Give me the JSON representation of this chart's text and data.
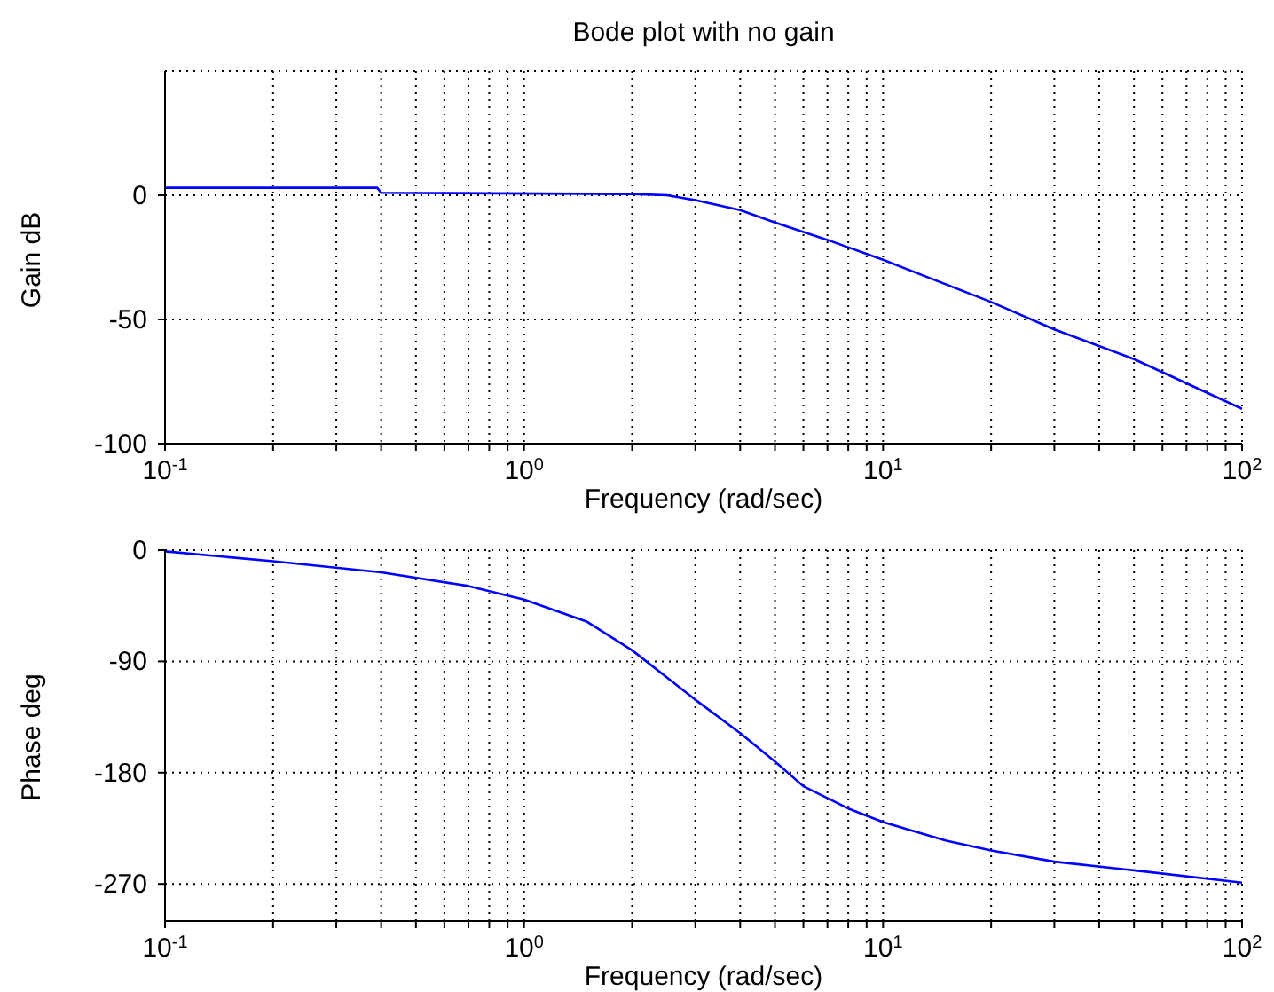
{
  "chart_data": [
    {
      "type": "line",
      "title": "Bode plot with no gain",
      "xlabel": "Frequency (rad/sec)",
      "ylabel": "Gain dB",
      "log": "x",
      "grid": true,
      "marker": "none",
      "line_style": "solid",
      "xlim": [
        0.1,
        100
      ],
      "ylim": [
        -100,
        50
      ],
      "yticks": [
        -100,
        -50,
        0
      ],
      "xticks": [
        {
          "value": 0.1,
          "label": "10$^{-1}$"
        },
        {
          "value": 0.2,
          "label": null
        },
        {
          "value": 0.3,
          "label": null
        },
        {
          "value": 0.4,
          "label": null
        },
        {
          "value": 0.5,
          "label": null
        },
        {
          "value": 0.6,
          "label": null
        },
        {
          "value": 0.7,
          "label": null
        },
        {
          "value": 0.8,
          "label": null
        },
        {
          "value": 0.9,
          "label": null
        },
        {
          "value": 1,
          "label": "10$^{0}$"
        },
        {
          "value": 2,
          "label": null
        },
        {
          "value": 3,
          "label": null
        },
        {
          "value": 4,
          "label": null
        },
        {
          "value": 5,
          "label": null
        },
        {
          "value": 6,
          "label": null
        },
        {
          "value": 7,
          "label": null
        },
        {
          "value": 8,
          "label": null
        },
        {
          "value": 9,
          "label": null
        },
        {
          "value": 10,
          "label": "10$^{1}$"
        },
        {
          "value": 20,
          "label": null
        },
        {
          "value": 30,
          "label": null
        },
        {
          "value": 40,
          "label": null
        },
        {
          "value": 50,
          "label": null
        },
        {
          "value": 60,
          "label": null
        },
        {
          "value": 70,
          "label": null
        },
        {
          "value": 80,
          "label": null
        },
        {
          "value": 90,
          "label": null
        },
        {
          "value": 100,
          "label": "10$^{2}$"
        }
      ],
      "series": [
        {
          "color": "#0000ff",
          "x": [
            0.1,
            0.39,
            0.4,
            2,
            2.5,
            3,
            4,
            5,
            7,
            10,
            20,
            30,
            50,
            100
          ],
          "values": [
            3,
            3,
            1,
            0.5,
            0,
            -2,
            -6,
            -11,
            -18,
            -26,
            -43,
            -54,
            -66,
            -86
          ]
        }
      ]
    },
    {
      "type": "line",
      "xlabel": "Frequency (rad/sec)",
      "ylabel": "Phase deg",
      "log": "x",
      "grid": true,
      "marker": "none",
      "line_style": "solid",
      "xlim": [
        0.1,
        100
      ],
      "ylim": [
        -300,
        0
      ],
      "yticks": [
        -270,
        -180,
        -90,
        0
      ],
      "xticks": [
        {
          "value": 0.1,
          "label": "10$^{-1}$"
        },
        {
          "value": 0.2,
          "label": null
        },
        {
          "value": 0.3,
          "label": null
        },
        {
          "value": 0.4,
          "label": null
        },
        {
          "value": 0.5,
          "label": null
        },
        {
          "value": 0.6,
          "label": null
        },
        {
          "value": 0.7,
          "label": null
        },
        {
          "value": 0.8,
          "label": null
        },
        {
          "value": 0.9,
          "label": null
        },
        {
          "value": 1,
          "label": "10$^{0}$"
        },
        {
          "value": 2,
          "label": null
        },
        {
          "value": 3,
          "label": null
        },
        {
          "value": 4,
          "label": null
        },
        {
          "value": 5,
          "label": null
        },
        {
          "value": 6,
          "label": null
        },
        {
          "value": 7,
          "label": null
        },
        {
          "value": 8,
          "label": null
        },
        {
          "value": 9,
          "label": null
        },
        {
          "value": 10,
          "label": "10$^{1}$"
        },
        {
          "value": 20,
          "label": null
        },
        {
          "value": 30,
          "label": null
        },
        {
          "value": 40,
          "label": null
        },
        {
          "value": 50,
          "label": null
        },
        {
          "value": 60,
          "label": null
        },
        {
          "value": 70,
          "label": null
        },
        {
          "value": 80,
          "label": null
        },
        {
          "value": 90,
          "label": null
        },
        {
          "value": 100,
          "label": "10$^{2}$"
        }
      ],
      "series": [
        {
          "color": "#0000ff",
          "x": [
            0.1,
            0.2,
            0.4,
            0.7,
            1,
            1.5,
            2,
            3,
            4,
            5,
            6,
            8,
            10,
            15,
            20,
            30,
            50,
            100
          ],
          "values": [
            -1,
            -9,
            -18,
            -29,
            -40,
            -58,
            -81,
            -121,
            -148,
            -171,
            -191,
            -209,
            -220,
            -235,
            -243,
            -252,
            -259,
            -269
          ]
        }
      ]
    }
  ]
}
